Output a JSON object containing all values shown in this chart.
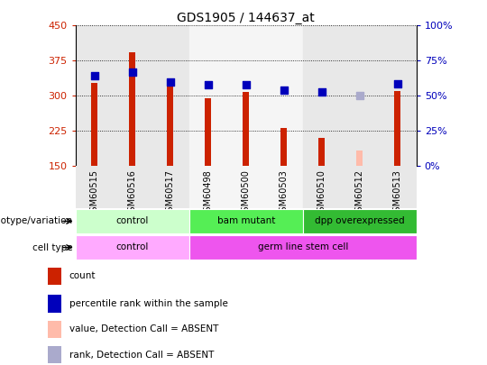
{
  "title": "GDS1905 / 144637_at",
  "samples": [
    "GSM60515",
    "GSM60516",
    "GSM60517",
    "GSM60498",
    "GSM60500",
    "GSM60503",
    "GSM60510",
    "GSM60512",
    "GSM60513"
  ],
  "count_values": [
    328,
    392,
    330,
    295,
    308,
    232,
    210,
    null,
    310
  ],
  "count_absent": [
    null,
    null,
    null,
    null,
    null,
    null,
    null,
    183,
    null
  ],
  "percentile_values": [
    342,
    350,
    330,
    323,
    324,
    313,
    308,
    null,
    326
  ],
  "percentile_absent": [
    null,
    null,
    null,
    null,
    null,
    null,
    null,
    300,
    null
  ],
  "ylim": [
    150,
    450
  ],
  "yticks": [
    150,
    225,
    300,
    375,
    450
  ],
  "y2tick_labels": [
    "0%",
    "25%",
    "50%",
    "75%",
    "100%"
  ],
  "y2tick_vals": [
    150,
    225,
    300,
    375,
    450
  ],
  "bar_color": "#cc2200",
  "bar_absent_color": "#ffbbaa",
  "dot_color": "#0000bb",
  "dot_absent_color": "#aaaacc",
  "bar_bottom": 150,
  "bar_width": 0.18,
  "dot_size": 28,
  "genotype_groups": [
    {
      "label": "control",
      "start": 0,
      "end": 3,
      "color": "#ccffcc"
    },
    {
      "label": "bam mutant",
      "start": 3,
      "end": 6,
      "color": "#55ee55"
    },
    {
      "label": "dpp overexpressed",
      "start": 6,
      "end": 9,
      "color": "#33bb33"
    }
  ],
  "celltype_groups": [
    {
      "label": "control",
      "start": 0,
      "end": 3,
      "color": "#ffaaff"
    },
    {
      "label": "germ line stem cell",
      "start": 3,
      "end": 9,
      "color": "#ee55ee"
    }
  ],
  "legend_items": [
    {
      "label": "count",
      "color": "#cc2200"
    },
    {
      "label": "percentile rank within the sample",
      "color": "#0000bb"
    },
    {
      "label": "value, Detection Call = ABSENT",
      "color": "#ffbbaa"
    },
    {
      "label": "rank, Detection Call = ABSENT",
      "color": "#aaaacc"
    }
  ],
  "col_bg_colors": [
    "#e8e8e8",
    "#e8e8e8",
    "#e8e8e8",
    "#f5f5f5",
    "#f5f5f5",
    "#f5f5f5",
    "#e8e8e8",
    "#e8e8e8",
    "#e8e8e8"
  ],
  "tick_color_left": "#cc2200",
  "tick_color_right": "#0000bb"
}
